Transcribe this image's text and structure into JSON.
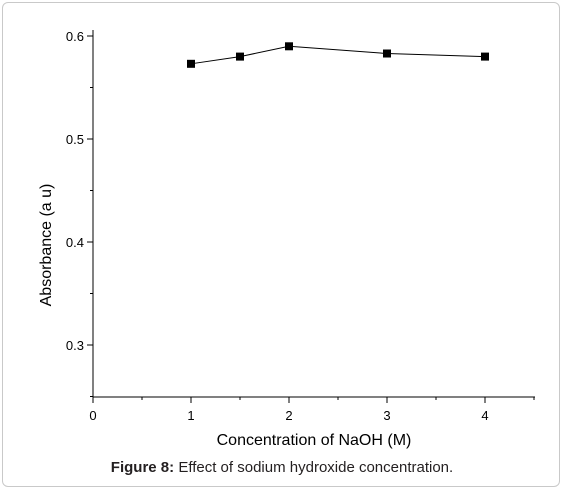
{
  "chart_data": {
    "type": "line",
    "x": [
      1,
      1.5,
      2,
      3,
      4
    ],
    "series": [
      {
        "values": [
          0.573,
          0.58,
          0.59,
          0.583,
          0.58
        ]
      }
    ],
    "xlabel": "Concentration of NaOH (M)",
    "ylabel": "Absorbance (a u)",
    "xlim": [
      0,
      4.5
    ],
    "ylim": [
      0.25,
      0.6
    ],
    "xticks": [
      0,
      1,
      2,
      3,
      4
    ],
    "yticks": [
      0.3,
      0.4,
      0.5,
      0.6
    ],
    "ytick_labels": [
      "0.3",
      "0.4",
      "0.5",
      "0.6"
    ],
    "grid": false,
    "marker": "square",
    "line_color": "#000000"
  },
  "caption": {
    "label": "Figure 8:",
    "text": "Effect of sodium hydroxide concentration."
  }
}
